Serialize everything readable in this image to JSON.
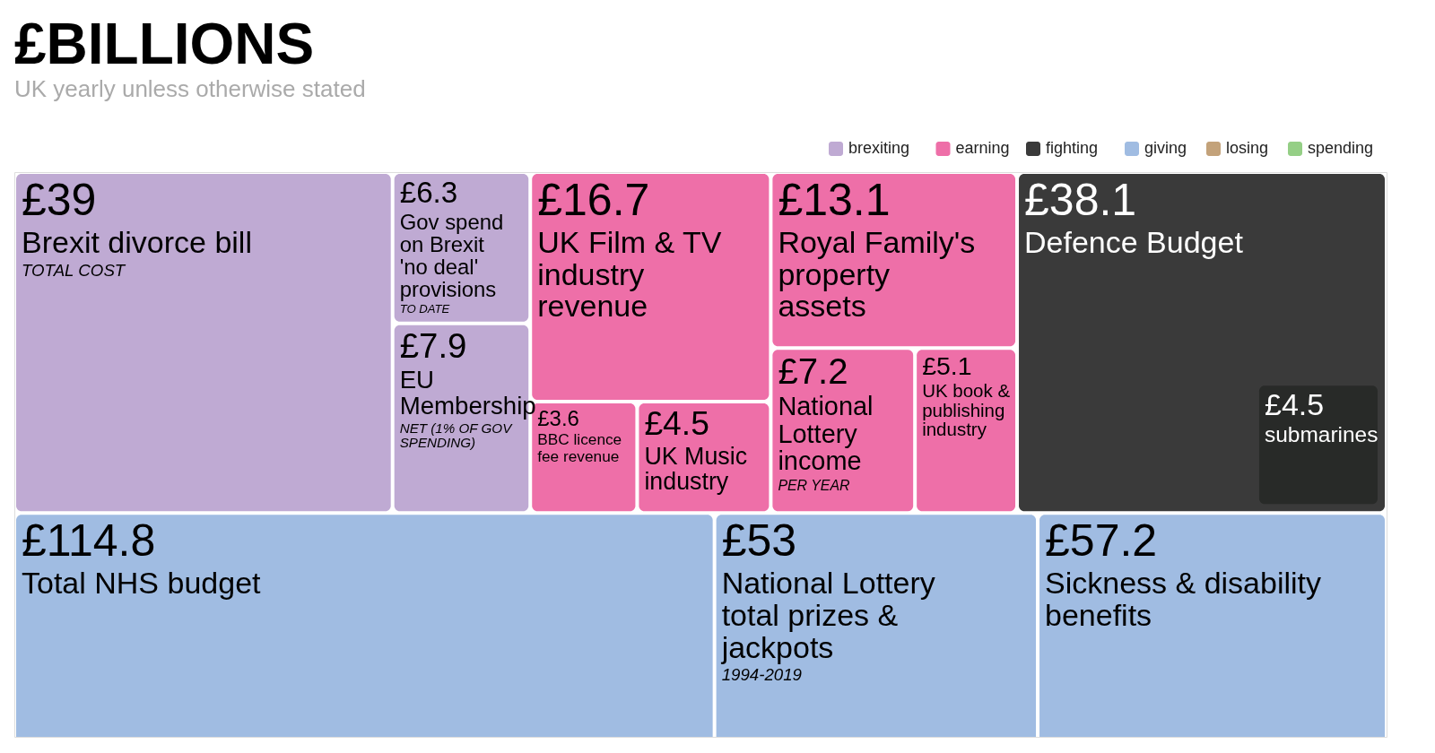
{
  "chart_data": {
    "type": "other",
    "title": "£BILLIONS",
    "subtitle": "UK yearly unless otherwise stated",
    "legend": "top right",
    "categories": [
      "Brexit divorce bill",
      "Gov spend on Brexit 'no deal' provisions",
      "EU Membership",
      "UK Film & TV industry revenue",
      "BBC licence fee revenue",
      "UK Music industry",
      "Royal Family's property assets",
      "National Lottery income",
      "UK book & publishing industry",
      "Defence Budget",
      "submarines",
      "Total NHS budget",
      "National Lottery total prizes & jackpots",
      "Sickness & disability benefits"
    ],
    "series": [
      {
        "name": "brexiting",
        "color": "#bfaad3",
        "values": [
          39,
          6.3,
          7.9,
          null,
          null,
          null,
          null,
          null,
          null,
          null,
          null,
          null,
          null,
          null
        ],
        "value_labels": [
          "£39",
          "£6.3",
          "£7.9",
          null,
          null,
          null,
          null,
          null,
          null,
          null,
          null,
          null,
          null,
          null
        ]
      },
      {
        "name": "earning",
        "color": "#ee6fa8",
        "values": [
          null,
          null,
          null,
          16.7,
          3.6,
          4.5,
          13.1,
          7.2,
          5.1,
          null,
          null,
          null,
          null,
          null
        ],
        "value_labels": [
          null,
          null,
          null,
          "£16.7",
          "£3.6",
          "£4.5",
          "£13.1",
          "£7.2",
          "£5.1",
          null,
          null,
          null,
          null,
          null
        ]
      },
      {
        "name": "fighting",
        "color": "#3a3a3a",
        "colors": [
          null,
          null,
          null,
          null,
          null,
          null,
          null,
          null,
          null,
          "#3a3a3a",
          "#282a28",
          null,
          null,
          null
        ],
        "values": [
          null,
          null,
          null,
          null,
          null,
          null,
          null,
          null,
          null,
          38.1,
          4.5,
          null,
          null,
          null
        ],
        "value_labels": [
          null,
          null,
          null,
          null,
          null,
          null,
          null,
          null,
          null,
          "£38.1",
          "£4.5",
          null,
          null,
          null
        ]
      },
      {
        "name": "giving",
        "color": "#a0bce2",
        "values": [
          null,
          null,
          null,
          null,
          null,
          null,
          null,
          null,
          null,
          null,
          null,
          114.8,
          53,
          57.2
        ],
        "value_labels": [
          null,
          null,
          null,
          null,
          null,
          null,
          null,
          null,
          null,
          null,
          null,
          "£114.8",
          "£53",
          "£57.2"
        ]
      },
      {
        "name": "losing",
        "color": "#c3a27a",
        "values": [
          null,
          null,
          null,
          null,
          null,
          null,
          null,
          null,
          null,
          null,
          null,
          null,
          null,
          null
        ]
      },
      {
        "name": "spending",
        "color": "#95cf86",
        "values": [
          null,
          null,
          null,
          null,
          null,
          null,
          null,
          null,
          null,
          null,
          null,
          null,
          null,
          null
        ]
      }
    ],
    "annotations": [
      {
        "text": "TOTAL COST",
        "x": "Brexit divorce bill"
      },
      {
        "text": "TO DATE",
        "x": "Gov spend on Brexit 'no deal' provisions"
      },
      {
        "text": "NET (1% OF GOV SPENDING)",
        "x": "EU Membership"
      },
      {
        "text": "PER YEAR",
        "x": "National Lottery income"
      },
      {
        "text": "1994-2019",
        "x": "National Lottery total prizes & jackpots"
      }
    ]
  }
}
